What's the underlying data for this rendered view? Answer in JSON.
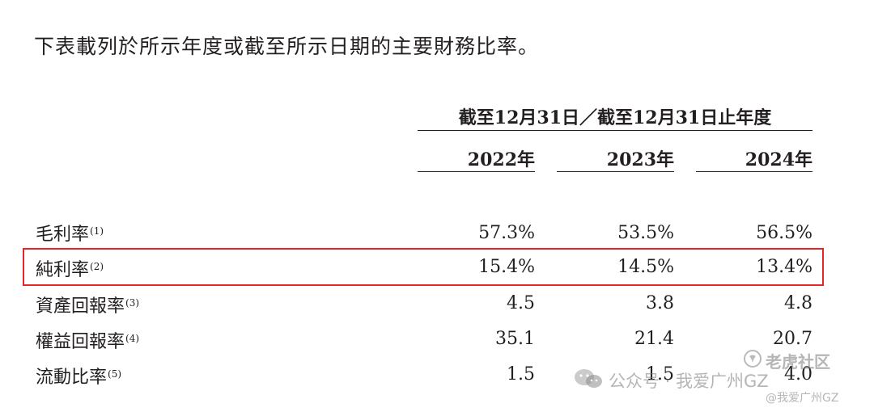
{
  "intro": "下表載列於所示年度或截至所示日期的主要財務比率。",
  "table": {
    "group_header": "截至12月31日／截至12月31日止年度",
    "years": [
      "2022年",
      "2023年",
      "2024年"
    ],
    "rows": [
      {
        "label": "毛利率",
        "note": "(1)",
        "values": [
          "57.3%",
          "53.5%",
          "56.5%"
        ]
      },
      {
        "label": "純利率",
        "note": "(2)",
        "values": [
          "15.4%",
          "14.5%",
          "13.4%"
        ]
      },
      {
        "label": "資產回報率",
        "note": "(3)",
        "values": [
          "4.5",
          "3.8",
          "4.8"
        ]
      },
      {
        "label": "權益回報率",
        "note": "(4)",
        "values": [
          "35.1",
          "21.4",
          "20.7"
        ]
      },
      {
        "label": "流動比率",
        "note": "(5)",
        "values": [
          "1.5",
          "1.5",
          "4.0"
        ]
      }
    ]
  },
  "highlight": {
    "row": "純利率",
    "color": "#e3262a"
  },
  "watermark": {
    "main": "公众号 · 我爱广州GZ",
    "corner": "老虎社区",
    "sub": "@我爱广州GZ",
    "icon": "wechat-icon"
  }
}
